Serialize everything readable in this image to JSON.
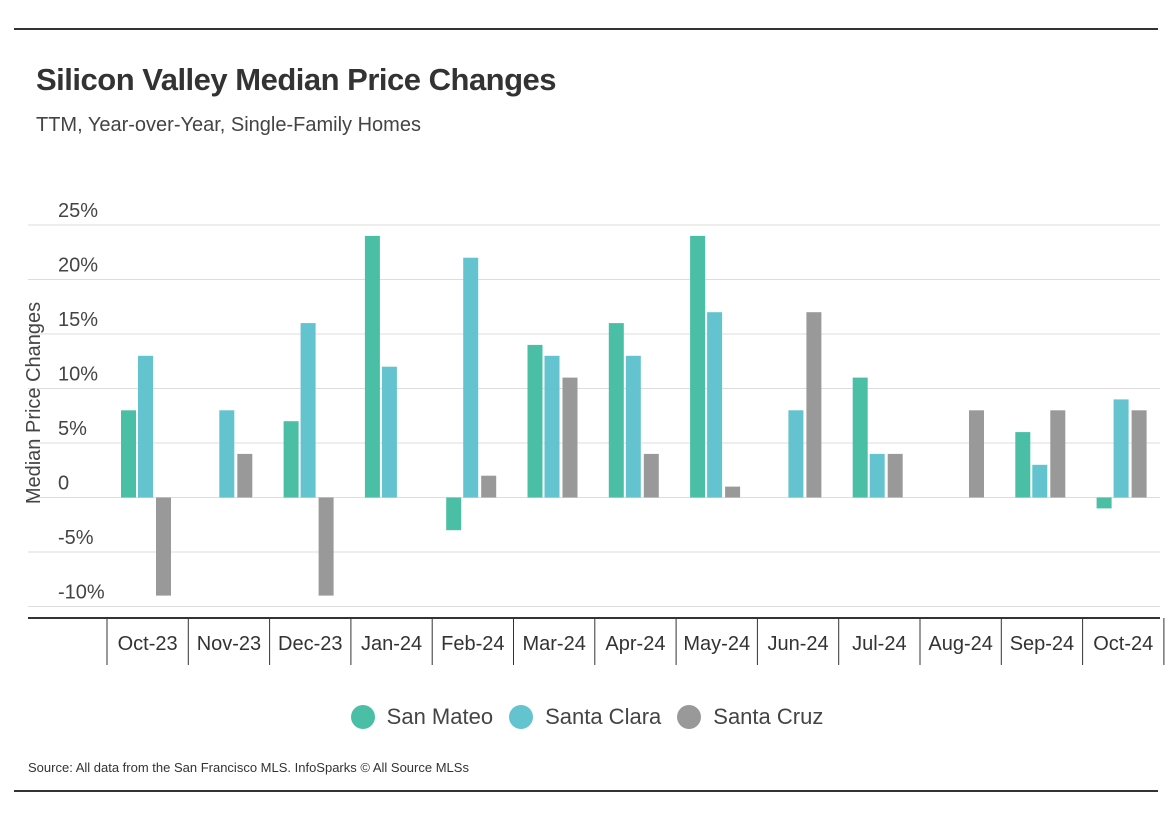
{
  "title": "Silicon Valley Median Price Changes",
  "subtitle": "TTM, Year-over-Year, Single-Family Homes",
  "source": "Source:  All data from the San Francisco MLS. InfoSparks © All Source MLSs",
  "colors": {
    "san_mateo": "#4bbfa5",
    "santa_clara": "#63c3cf",
    "santa_cruz": "#999999"
  },
  "chart_data": {
    "type": "bar",
    "ylabel": "Median Price Changes",
    "ylim": [
      -11,
      27
    ],
    "yticks": [
      25,
      20,
      15,
      10,
      5,
      0,
      -5,
      -10
    ],
    "ytick_labels": [
      "25%",
      "20%",
      "15%",
      "10%",
      "5%",
      "0",
      "-5%",
      "-10%"
    ],
    "grid": true,
    "legend_position": "bottom",
    "categories": [
      "Oct-23",
      "Nov-23",
      "Dec-23",
      "Jan-24",
      "Feb-24",
      "Mar-24",
      "Apr-24",
      "May-24",
      "Jun-24",
      "Jul-24",
      "Aug-24",
      "Sep-24",
      "Oct-24"
    ],
    "series": [
      {
        "name": "San Mateo",
        "color": "#4bbfa5",
        "values": [
          8,
          0,
          7,
          24,
          -3,
          14,
          16,
          24,
          0,
          11,
          0,
          6,
          -1
        ]
      },
      {
        "name": "Santa Clara",
        "color": "#63c3cf",
        "values": [
          13,
          8,
          16,
          12,
          22,
          13,
          13,
          17,
          8,
          4,
          0,
          3,
          9
        ]
      },
      {
        "name": "Santa Cruz",
        "color": "#999999",
        "values": [
          -9,
          4,
          -9,
          0,
          2,
          11,
          4,
          1,
          17,
          4,
          8,
          8,
          8
        ]
      }
    ]
  }
}
